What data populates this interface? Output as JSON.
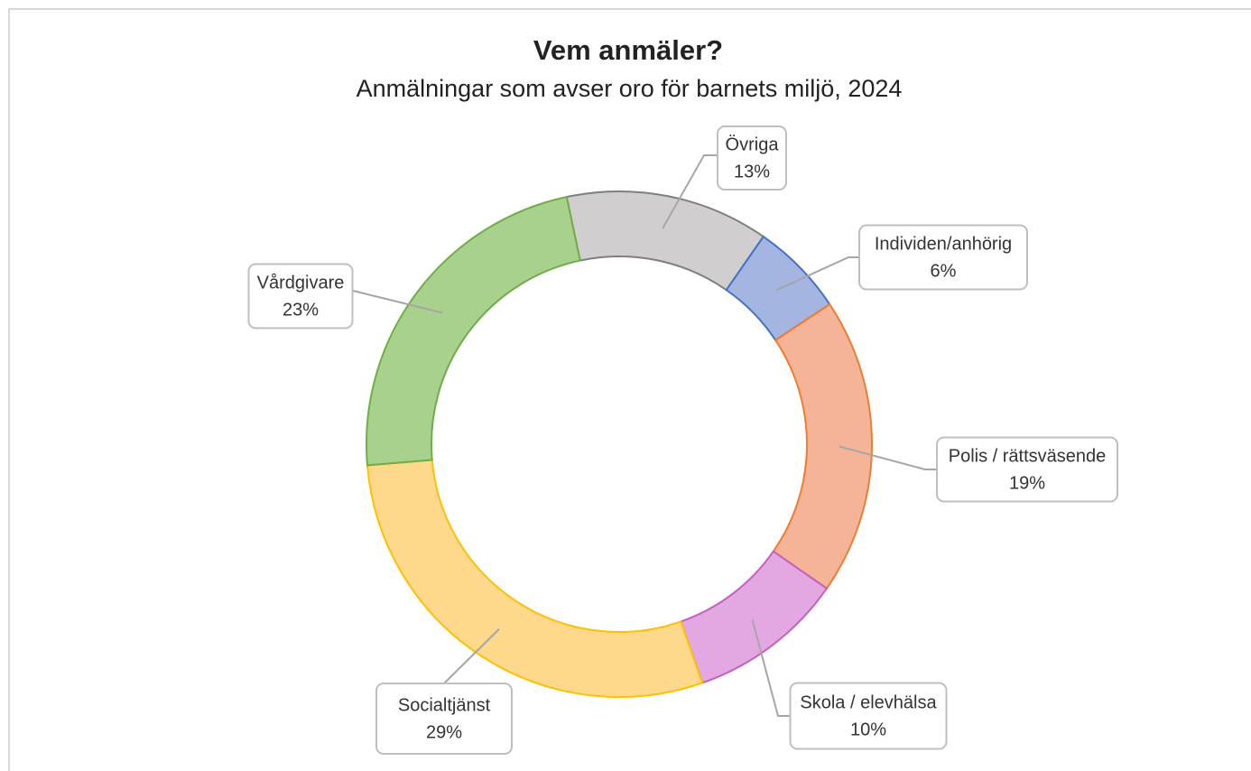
{
  "chart_data": {
    "type": "pie",
    "donut": true,
    "title": "Vem anmäler?",
    "subtitle": "Anmälningar som avser oro för barnets miljö, 2024",
    "categories": [
      "Övriga",
      "Individen/anhörig",
      "Polis / rättsväsende",
      "Skola / elevhälsa",
      "Socialtjänst",
      "Vårdgivare"
    ],
    "values": [
      13,
      6,
      19,
      10,
      29,
      23
    ],
    "value_labels": [
      "13%",
      "6%",
      "19%",
      "10%",
      "29%",
      "23%"
    ],
    "colors": [
      "#d0cece",
      "#a4b5e1",
      "#f5b497",
      "#e3a8e1",
      "#ffd98b",
      "#a9d18e"
    ],
    "edge_colors": [
      "#7f7f7f",
      "#4472c4",
      "#ed7d31",
      "#c55fc0",
      "#ffc000",
      "#70ad47"
    ]
  }
}
